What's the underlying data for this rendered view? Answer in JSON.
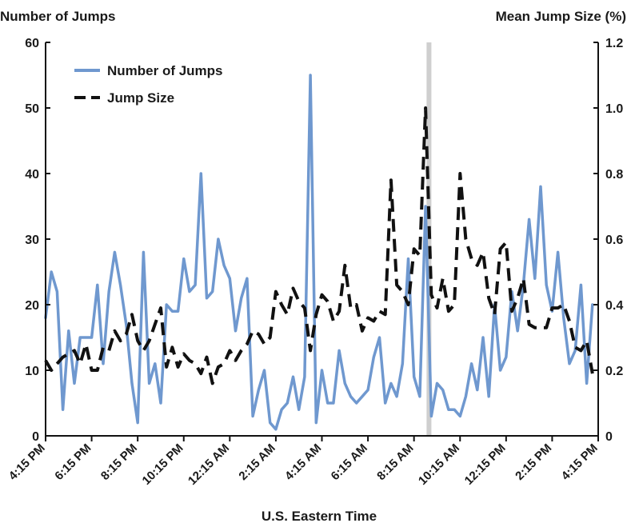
{
  "chart_data": {
    "type": "line",
    "y_left_title": "Number of Jumps",
    "y_right_title": "Mean Jump Size (%)",
    "x_title": "U.S. Eastern Time",
    "x_ticks": [
      {
        "label": "4:15 PM",
        "hours_since_start": 0
      },
      {
        "label": "6:15 PM",
        "hours_since_start": 2
      },
      {
        "label": "8:15 PM",
        "hours_since_start": 4
      },
      {
        "label": "10:15 PM",
        "hours_since_start": 6
      },
      {
        "label": "12:15 AM",
        "hours_since_start": 8
      },
      {
        "label": "2:15 AM",
        "hours_since_start": 10
      },
      {
        "label": "4:15 AM",
        "hours_since_start": 12
      },
      {
        "label": "6:15 AM",
        "hours_since_start": 14
      },
      {
        "label": "8:15 AM",
        "hours_since_start": 16
      },
      {
        "label": "10:15 AM",
        "hours_since_start": 18
      },
      {
        "label": "12:15 PM",
        "hours_since_start": 20
      },
      {
        "label": "2:15 PM",
        "hours_since_start": 22
      },
      {
        "label": "4:15 PM",
        "hours_since_start": 24
      }
    ],
    "y_left_ticks": [
      0,
      10,
      20,
      30,
      40,
      50,
      60
    ],
    "y_right_ticks": [
      "0",
      "0.2",
      "0.4",
      "0.6",
      "0.8",
      "1.0",
      "1.2"
    ],
    "y_left_range": [
      0,
      60
    ],
    "y_right_range": [
      0,
      1.2
    ],
    "highlight_hour": 16.65,
    "legend_placement": "top-left",
    "series": [
      {
        "name": "Number of Jumps",
        "axis": "left",
        "color": "#6f98cf",
        "style": "solid",
        "points": [
          [
            0,
            18
          ],
          [
            0.25,
            25
          ],
          [
            0.5,
            22
          ],
          [
            0.75,
            4
          ],
          [
            1,
            16
          ],
          [
            1.25,
            8
          ],
          [
            1.5,
            15
          ],
          [
            1.75,
            15
          ],
          [
            2,
            15
          ],
          [
            2.25,
            23
          ],
          [
            2.5,
            11
          ],
          [
            2.75,
            22
          ],
          [
            3,
            28
          ],
          [
            3.25,
            23
          ],
          [
            3.5,
            17
          ],
          [
            3.75,
            8
          ],
          [
            4,
            2
          ],
          [
            4.25,
            28
          ],
          [
            4.5,
            8
          ],
          [
            4.75,
            11
          ],
          [
            5,
            5
          ],
          [
            5.25,
            20
          ],
          [
            5.5,
            19
          ],
          [
            5.75,
            19
          ],
          [
            6,
            27
          ],
          [
            6.25,
            22
          ],
          [
            6.5,
            23
          ],
          [
            6.75,
            40
          ],
          [
            7,
            21
          ],
          [
            7.25,
            22
          ],
          [
            7.5,
            30
          ],
          [
            7.75,
            26
          ],
          [
            8,
            24
          ],
          [
            8.25,
            16
          ],
          [
            8.5,
            21
          ],
          [
            8.75,
            24
          ],
          [
            9,
            3
          ],
          [
            9.25,
            7
          ],
          [
            9.5,
            10
          ],
          [
            9.75,
            2
          ],
          [
            10,
            1
          ],
          [
            10.25,
            4
          ],
          [
            10.5,
            5
          ],
          [
            10.75,
            9
          ],
          [
            11,
            4
          ],
          [
            11.25,
            9
          ],
          [
            11.5,
            55
          ],
          [
            11.75,
            2
          ],
          [
            12,
            10
          ],
          [
            12.25,
            5
          ],
          [
            12.5,
            5
          ],
          [
            12.75,
            13
          ],
          [
            13,
            8
          ],
          [
            13.25,
            6
          ],
          [
            13.5,
            5
          ],
          [
            13.75,
            6
          ],
          [
            14,
            7
          ],
          [
            14.25,
            12
          ],
          [
            14.5,
            15
          ],
          [
            14.75,
            5
          ],
          [
            15,
            8
          ],
          [
            15.25,
            6
          ],
          [
            15.5,
            11
          ],
          [
            15.75,
            27
          ],
          [
            16,
            9
          ],
          [
            16.25,
            6
          ],
          [
            16.5,
            35
          ],
          [
            16.75,
            3
          ],
          [
            17,
            8
          ],
          [
            17.25,
            7
          ],
          [
            17.5,
            4
          ],
          [
            17.75,
            4
          ],
          [
            18,
            3
          ],
          [
            18.25,
            6
          ],
          [
            18.5,
            11
          ],
          [
            18.75,
            7
          ],
          [
            19,
            15
          ],
          [
            19.25,
            6
          ],
          [
            19.5,
            20
          ],
          [
            19.75,
            10
          ],
          [
            20,
            12
          ],
          [
            20.25,
            22
          ],
          [
            20.5,
            16
          ],
          [
            20.75,
            23
          ],
          [
            21,
            33
          ],
          [
            21.25,
            24
          ],
          [
            21.5,
            38
          ],
          [
            21.75,
            23
          ],
          [
            22,
            19
          ],
          [
            22.25,
            28
          ],
          [
            22.5,
            18
          ],
          [
            22.75,
            11
          ],
          [
            23,
            13
          ],
          [
            23.25,
            23
          ],
          [
            23.5,
            8
          ],
          [
            23.75,
            20
          ]
        ]
      },
      {
        "name": "Jump Size",
        "axis": "right",
        "color": "#111111",
        "style": "dashed",
        "points": [
          [
            0,
            0.23
          ],
          [
            0.25,
            0.2
          ],
          [
            0.5,
            0.22
          ],
          [
            0.75,
            0.24
          ],
          [
            1,
            0.25
          ],
          [
            1.25,
            0.26
          ],
          [
            1.5,
            0.22
          ],
          [
            1.75,
            0.28
          ],
          [
            2,
            0.2
          ],
          [
            2.25,
            0.2
          ],
          [
            2.5,
            0.27
          ],
          [
            2.75,
            0.26
          ],
          [
            3,
            0.32
          ],
          [
            3.25,
            0.29
          ],
          [
            3.5,
            0.31
          ],
          [
            3.75,
            0.37
          ],
          [
            4,
            0.29
          ],
          [
            4.25,
            0.26
          ],
          [
            4.5,
            0.29
          ],
          [
            4.75,
            0.34
          ],
          [
            5,
            0.39
          ],
          [
            5.25,
            0.21
          ],
          [
            5.5,
            0.27
          ],
          [
            5.75,
            0.21
          ],
          [
            6,
            0.25
          ],
          [
            6.25,
            0.23
          ],
          [
            6.5,
            0.22
          ],
          [
            6.75,
            0.19
          ],
          [
            7,
            0.24
          ],
          [
            7.25,
            0.16
          ],
          [
            7.5,
            0.21
          ],
          [
            7.75,
            0.22
          ],
          [
            8,
            0.26
          ],
          [
            8.25,
            0.23
          ],
          [
            8.5,
            0.26
          ],
          [
            8.75,
            0.28
          ],
          [
            9,
            0.32
          ],
          [
            9.25,
            0.31
          ],
          [
            9.5,
            0.28
          ],
          [
            9.75,
            0.3
          ],
          [
            10,
            0.44
          ],
          [
            10.25,
            0.4
          ],
          [
            10.5,
            0.37
          ],
          [
            10.75,
            0.45
          ],
          [
            11,
            0.41
          ],
          [
            11.25,
            0.39
          ],
          [
            11.5,
            0.26
          ],
          [
            11.75,
            0.37
          ],
          [
            12,
            0.43
          ],
          [
            12.25,
            0.41
          ],
          [
            12.5,
            0.35
          ],
          [
            12.75,
            0.38
          ],
          [
            13,
            0.52
          ],
          [
            13.25,
            0.39
          ],
          [
            13.5,
            0.4
          ],
          [
            13.75,
            0.32
          ],
          [
            14,
            0.36
          ],
          [
            14.25,
            0.35
          ],
          [
            14.5,
            0.38
          ],
          [
            14.75,
            0.37
          ],
          [
            15,
            0.78
          ],
          [
            15.25,
            0.46
          ],
          [
            15.5,
            0.44
          ],
          [
            15.75,
            0.4
          ],
          [
            16,
            0.57
          ],
          [
            16.25,
            0.55
          ],
          [
            16.5,
            1.0
          ],
          [
            16.75,
            0.43
          ],
          [
            17,
            0.39
          ],
          [
            17.25,
            0.48
          ],
          [
            17.5,
            0.38
          ],
          [
            17.75,
            0.4
          ],
          [
            18,
            0.8
          ],
          [
            18.25,
            0.6
          ],
          [
            18.5,
            0.54
          ],
          [
            18.75,
            0.52
          ],
          [
            19,
            0.56
          ],
          [
            19.25,
            0.42
          ],
          [
            19.5,
            0.37
          ],
          [
            19.75,
            0.57
          ],
          [
            20,
            0.59
          ],
          [
            20.25,
            0.38
          ],
          [
            20.5,
            0.42
          ],
          [
            20.75,
            0.48
          ],
          [
            21,
            0.34
          ],
          [
            21.25,
            0.33
          ],
          [
            21.5,
            0.33
          ],
          [
            21.75,
            0.33
          ],
          [
            22,
            0.39
          ],
          [
            22.25,
            0.39
          ],
          [
            22.5,
            0.4
          ],
          [
            22.75,
            0.35
          ],
          [
            23,
            0.27
          ],
          [
            23.25,
            0.26
          ],
          [
            23.5,
            0.29
          ],
          [
            23.75,
            0.19
          ]
        ]
      }
    ]
  }
}
